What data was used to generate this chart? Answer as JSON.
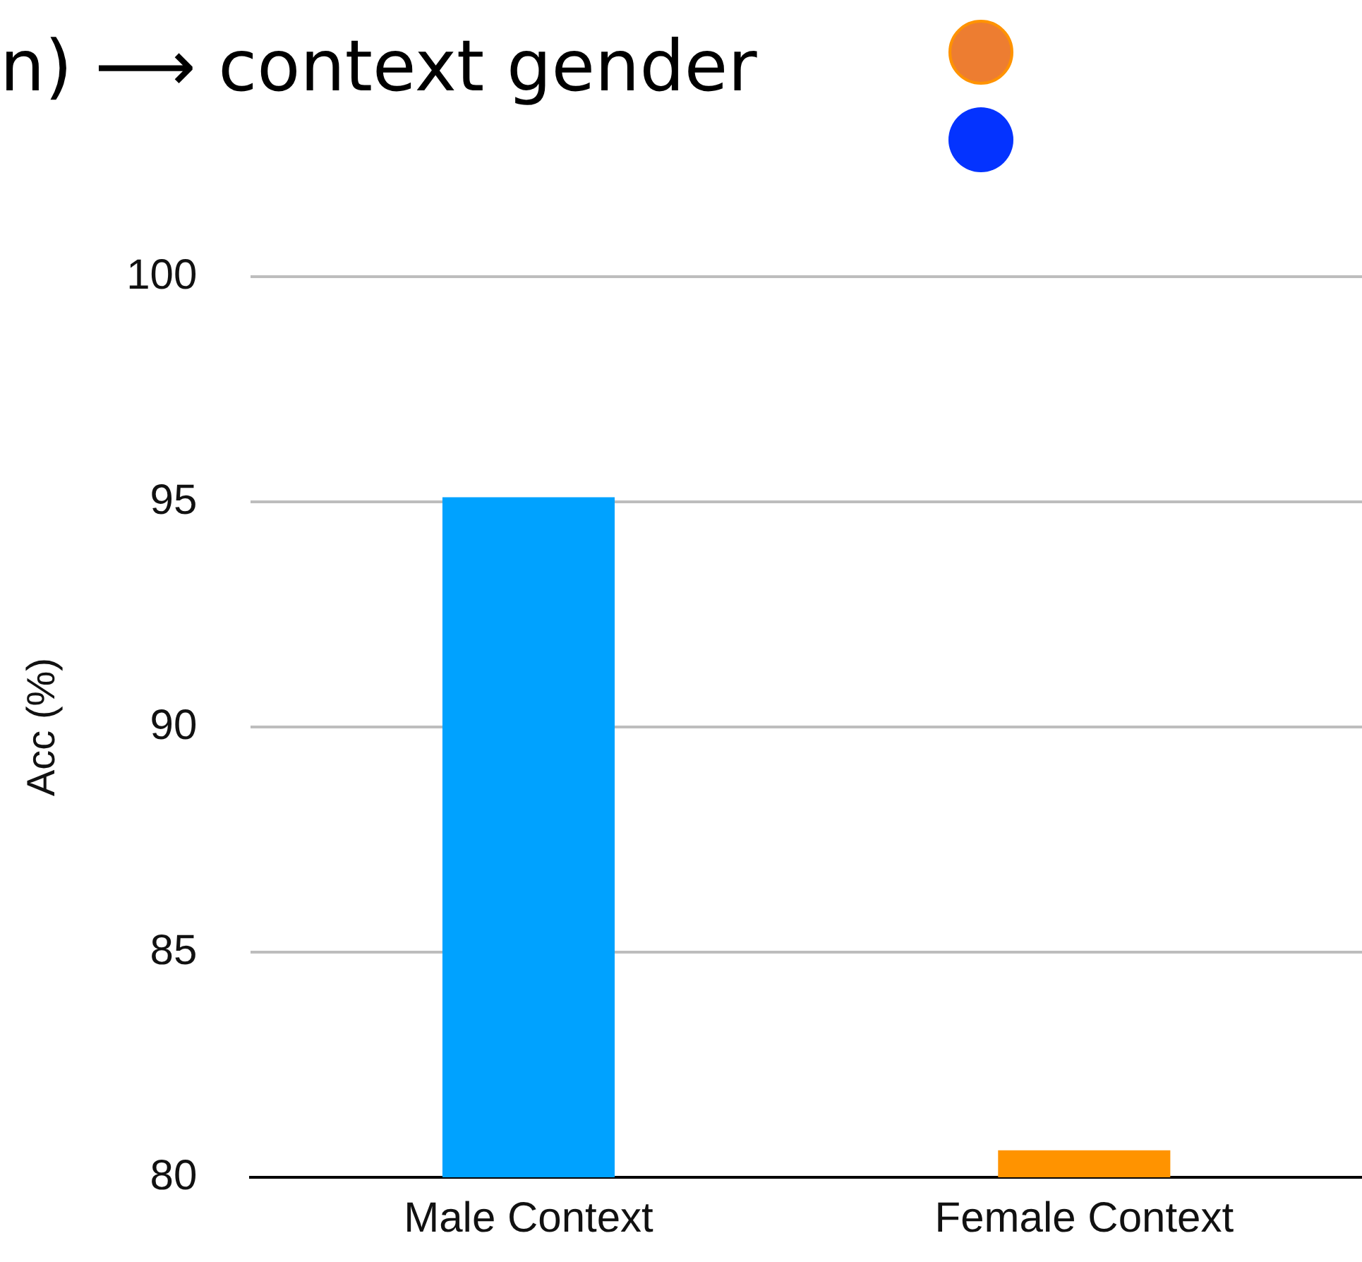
{
  "chart_data": {
    "type": "bar",
    "title": "n)  ⟶  context gender",
    "ylabel": "Acc (%)",
    "categories": [
      "Male Context",
      "Female Context"
    ],
    "values": [
      95.1,
      80.6
    ],
    "colors": [
      "#00a2ff",
      "#ff9300"
    ],
    "ylim": [
      80,
      100
    ],
    "yticks": [
      80,
      85,
      90,
      95,
      100
    ],
    "grid": "y",
    "legend": false
  }
}
